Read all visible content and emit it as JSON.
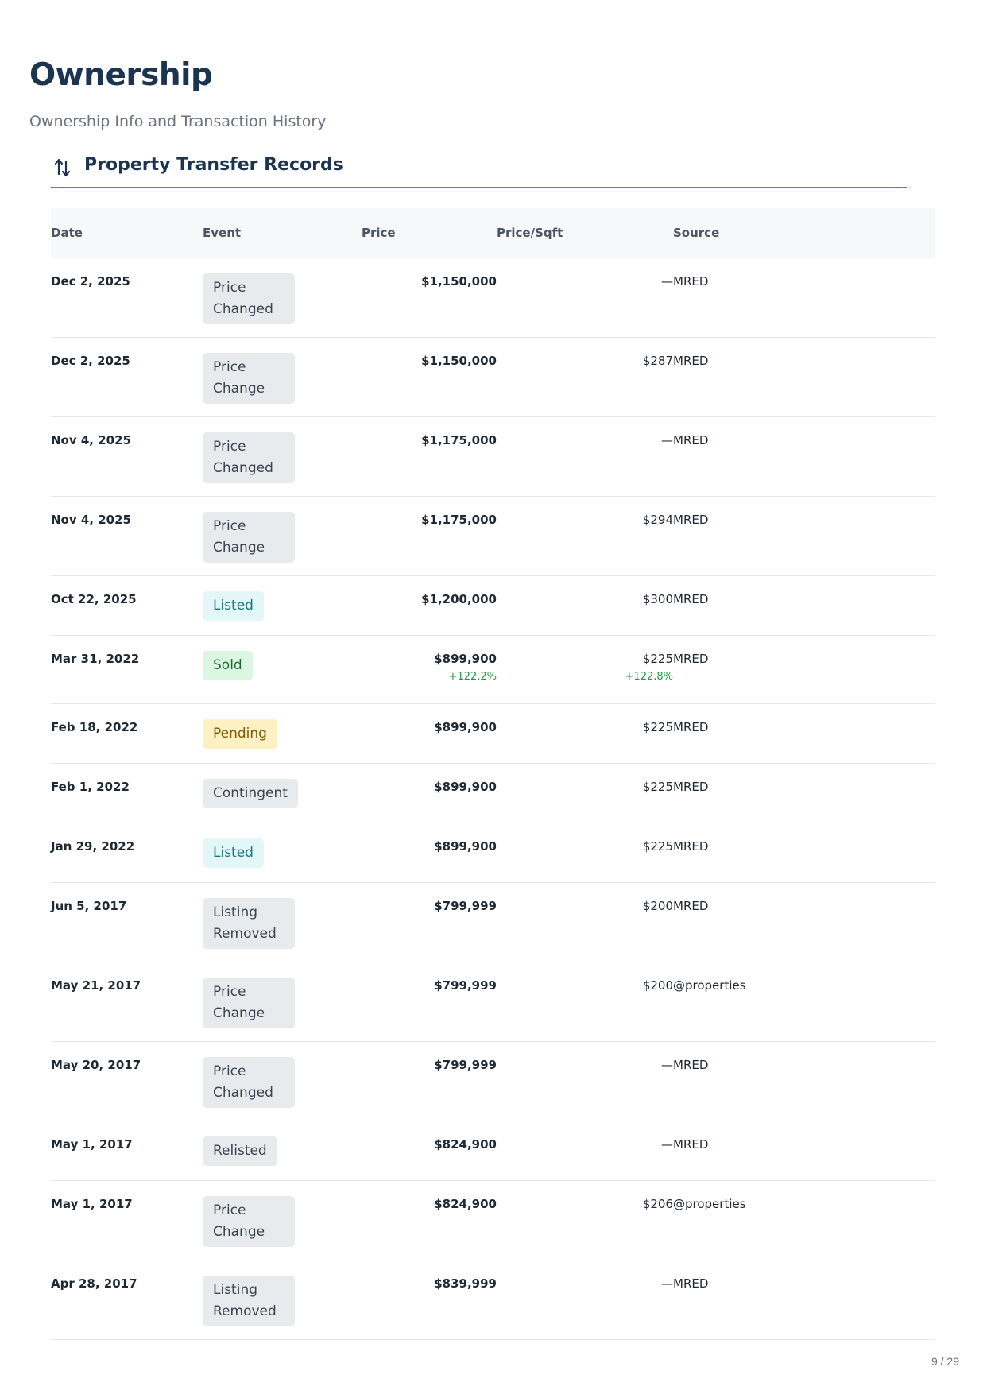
{
  "page": {
    "title": "Ownership",
    "subtitle": "Ownership Info and Transaction History",
    "page_number": "9 / 29"
  },
  "section": {
    "title": "Property Transfer Records",
    "icon": "transfer-arrows-icon"
  },
  "table": {
    "headers": {
      "date": "Date",
      "event": "Event",
      "price": "Price",
      "price_sqft": "Price/Sqft",
      "source": "Source"
    },
    "rows": [
      {
        "date": "Dec 2, 2025",
        "event": "Price Changed",
        "event_type": "neutral",
        "price": "$1,150,000",
        "price_change": "",
        "price_sqft": "—",
        "sqft_change": "",
        "source": "MRED"
      },
      {
        "date": "Dec 2, 2025",
        "event": "Price Change",
        "event_type": "neutral",
        "price": "$1,150,000",
        "price_change": "",
        "price_sqft": "$287",
        "sqft_change": "",
        "source": "MRED"
      },
      {
        "date": "Nov 4, 2025",
        "event": "Price Changed",
        "event_type": "neutral",
        "price": "$1,175,000",
        "price_change": "",
        "price_sqft": "—",
        "sqft_change": "",
        "source": "MRED"
      },
      {
        "date": "Nov 4, 2025",
        "event": "Price Change",
        "event_type": "neutral",
        "price": "$1,175,000",
        "price_change": "",
        "price_sqft": "$294",
        "sqft_change": "",
        "source": "MRED"
      },
      {
        "date": "Oct 22, 2025",
        "event": "Listed",
        "event_type": "listed",
        "price": "$1,200,000",
        "price_change": "",
        "price_sqft": "$300",
        "sqft_change": "",
        "source": "MRED"
      },
      {
        "date": "Mar 31, 2022",
        "event": "Sold",
        "event_type": "sold",
        "price": "$899,900",
        "price_change": "+122.2%",
        "price_sqft": "$225",
        "sqft_change": "+122.8%",
        "source": "MRED"
      },
      {
        "date": "Feb 18, 2022",
        "event": "Pending",
        "event_type": "pending",
        "price": "$899,900",
        "price_change": "",
        "price_sqft": "$225",
        "sqft_change": "",
        "source": "MRED"
      },
      {
        "date": "Feb 1, 2022",
        "event": "Contingent",
        "event_type": "neutral",
        "price": "$899,900",
        "price_change": "",
        "price_sqft": "$225",
        "sqft_change": "",
        "source": "MRED"
      },
      {
        "date": "Jan 29, 2022",
        "event": "Listed",
        "event_type": "listed",
        "price": "$899,900",
        "price_change": "",
        "price_sqft": "$225",
        "sqft_change": "",
        "source": "MRED"
      },
      {
        "date": "Jun 5, 2017",
        "event": "Listing Removed",
        "event_type": "neutral",
        "price": "$799,999",
        "price_change": "",
        "price_sqft": "$200",
        "sqft_change": "",
        "source": "MRED"
      },
      {
        "date": "May 21, 2017",
        "event": "Price Change",
        "event_type": "neutral",
        "price": "$799,999",
        "price_change": "",
        "price_sqft": "$200",
        "sqft_change": "",
        "source": "@properties"
      },
      {
        "date": "May 20, 2017",
        "event": "Price Changed",
        "event_type": "neutral",
        "price": "$799,999",
        "price_change": "",
        "price_sqft": "—",
        "sqft_change": "",
        "source": "MRED"
      },
      {
        "date": "May 1, 2017",
        "event": "Relisted",
        "event_type": "neutral",
        "price": "$824,900",
        "price_change": "",
        "price_sqft": "—",
        "sqft_change": "",
        "source": "MRED"
      },
      {
        "date": "May 1, 2017",
        "event": "Price Change",
        "event_type": "neutral",
        "price": "$824,900",
        "price_change": "",
        "price_sqft": "$206",
        "sqft_change": "",
        "source": "@properties"
      },
      {
        "date": "Apr 28, 2017",
        "event": "Listing Removed",
        "event_type": "neutral",
        "price": "$839,999",
        "price_change": "",
        "price_sqft": "—",
        "sqft_change": "",
        "source": "MRED"
      }
    ]
  },
  "colors": {
    "heading": "#1b3450",
    "accent_line": "#2fa84f",
    "positive_change": "#1f9a3f",
    "badge_listed_bg": "#e4f7f8",
    "badge_sold_bg": "#dcf7e1",
    "badge_pending_bg": "#fdf0c2",
    "badge_neutral_bg": "#e8ebee"
  }
}
